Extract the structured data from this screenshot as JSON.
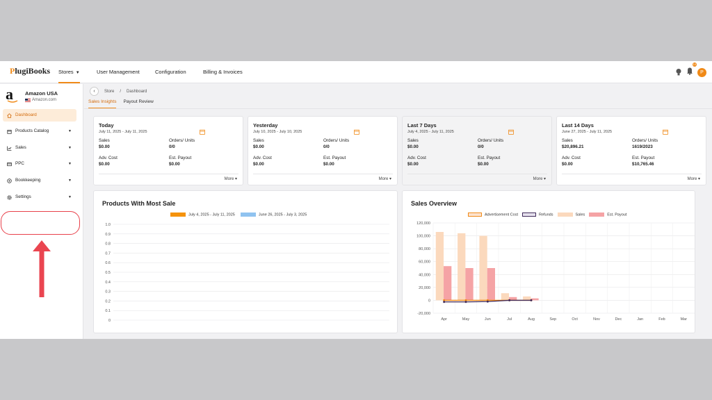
{
  "app": {
    "logo": "PlugiBooks",
    "nav": [
      {
        "label": "Stores",
        "active": true
      },
      {
        "label": "User Management"
      },
      {
        "label": "Configuration"
      },
      {
        "label": "Billing & Invoices"
      }
    ],
    "notification_count": "10",
    "avatar_initial": "P",
    "accent_color": "#f08a18"
  },
  "sidebar": {
    "store_name": "Amazon USA",
    "store_domain": "Amazon.com",
    "items": [
      {
        "label": "Dashboard",
        "icon": "home-icon"
      },
      {
        "label": "Products Catalog",
        "icon": "box-icon"
      },
      {
        "label": "Sales",
        "icon": "chart-icon"
      },
      {
        "label": "PPC",
        "icon": "card-icon"
      },
      {
        "label": "Bookkeeping",
        "icon": "ledger-icon"
      },
      {
        "label": "Settings",
        "icon": "gear-icon"
      }
    ]
  },
  "breadcrumb": {
    "store": "Store",
    "sep": "/",
    "page": "Dashboard"
  },
  "tabs": [
    "Sales Insights",
    "Payout Review"
  ],
  "cards": [
    {
      "title": "Today",
      "date": "July 11, 2025 - July 11, 2025",
      "sales": "$0.00",
      "orders": "0/0",
      "adv": "$0.00",
      "payout": "$0.00"
    },
    {
      "title": "Yesterday",
      "date": "July 10, 2025 - July 10, 2025",
      "sales": "$0.00",
      "orders": "0/0",
      "adv": "$0.00",
      "payout": "$0.00"
    },
    {
      "title": "Last 7 Days",
      "date": "July 4, 2025 - July 11, 2025",
      "sales": "$0.00",
      "orders": "0/0",
      "adv": "$0.00",
      "payout": "$0.00"
    },
    {
      "title": "Last 14 Days",
      "date": "June 27, 2025 - July 11, 2025",
      "sales": "$20,896.21",
      "orders": "1619/2023",
      "adv": "$0.00",
      "payout": "$10,765.46"
    }
  ],
  "card_labels": {
    "sales": "Sales",
    "orders": "Orders/ Units",
    "adv": "Adv. Cost",
    "payout": "Est. Payout",
    "more": "More"
  },
  "chart_data": [
    {
      "type": "bar",
      "title": "Products With Most Sale",
      "series": [
        {
          "name": "July 4, 2025 - July 11, 2025",
          "color": "#f5930c",
          "values": []
        },
        {
          "name": "June 26, 2025 - July 3, 2025",
          "color": "#90c3f0",
          "values": []
        }
      ],
      "ylim": [
        0,
        1.0
      ],
      "yticks": [
        "1.0",
        "0.9",
        "0.8",
        "0.7",
        "0.6",
        "0.5",
        "0.4",
        "0.3",
        "0.2",
        "0.1",
        "0"
      ]
    },
    {
      "type": "bar",
      "title": "Sales Overview",
      "categories": [
        "Apr",
        "May",
        "Jun",
        "Jul",
        "Aug",
        "Sep",
        "Oct",
        "Nov",
        "Dec",
        "Jan",
        "Feb",
        "Mar"
      ],
      "series": [
        {
          "name": "Advertisement Cost",
          "color": "#f08a18",
          "kind": "line",
          "values": [
            0,
            0,
            0,
            0,
            0,
            null,
            null,
            null,
            null,
            null,
            null,
            null
          ]
        },
        {
          "name": "Refunds",
          "color": "#3f2a5a",
          "kind": "line",
          "values": [
            -2500,
            -2500,
            -2000,
            0,
            0,
            null,
            null,
            null,
            null,
            null,
            null,
            null
          ]
        },
        {
          "name": "Sales",
          "color": "#fbd9bd",
          "kind": "bar",
          "values": [
            106000,
            104000,
            100000,
            11000,
            6000,
            null,
            null,
            null,
            null,
            null,
            null,
            null
          ]
        },
        {
          "name": "Est. Payout",
          "color": "#f5a3a5",
          "kind": "bar",
          "values": [
            53000,
            50000,
            50000,
            5000,
            3000,
            null,
            null,
            null,
            null,
            null,
            null,
            null
          ]
        }
      ],
      "ylim": [
        -20000,
        120000
      ],
      "yticks": [
        "120,000",
        "100,000",
        "80,000",
        "60,000",
        "40,000",
        "20,000",
        "0",
        "-20,000"
      ]
    }
  ]
}
